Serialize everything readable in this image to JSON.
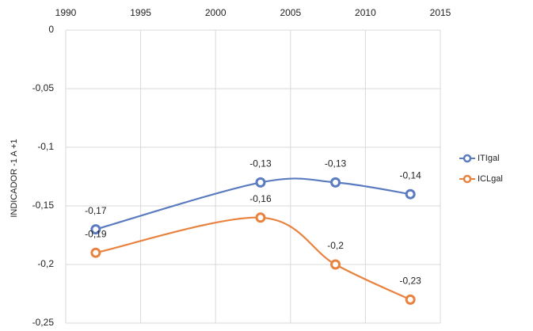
{
  "chart_data": {
    "type": "line",
    "x": [
      1992,
      2003,
      2008,
      2013
    ],
    "xlim": [
      1990,
      2015
    ],
    "xticks": [
      1990,
      1995,
      2000,
      2005,
      2010,
      2015
    ],
    "ylim": [
      -0.25,
      0
    ],
    "yticks": [
      0,
      {
        "value": -0.05,
        "label": "-0,05"
      },
      {
        "value": -0.1,
        "label": "-0,1"
      },
      {
        "value": -0.15,
        "label": "-0,15"
      },
      {
        "value": -0.2,
        "label": "-0,2"
      },
      {
        "value": -0.25,
        "label": "-0,25"
      }
    ],
    "y_label": "INDICADOR -1 A +1",
    "grid": true,
    "smooth": true,
    "legend": "right",
    "series": [
      {
        "name": "ITIgal",
        "color": "#5b7bc0",
        "values": [
          -0.17,
          -0.13,
          -0.13,
          -0.14
        ],
        "value_labels": [
          "-0,17",
          "-0,13",
          "-0,13",
          "-0,14"
        ]
      },
      {
        "name": "ICLgal",
        "color": "#e8823e",
        "values": [
          -0.19,
          -0.16,
          -0.2,
          -0.23
        ],
        "value_labels": [
          "-0,19",
          "-0,16",
          "-0,2",
          "-0,23"
        ]
      }
    ]
  }
}
